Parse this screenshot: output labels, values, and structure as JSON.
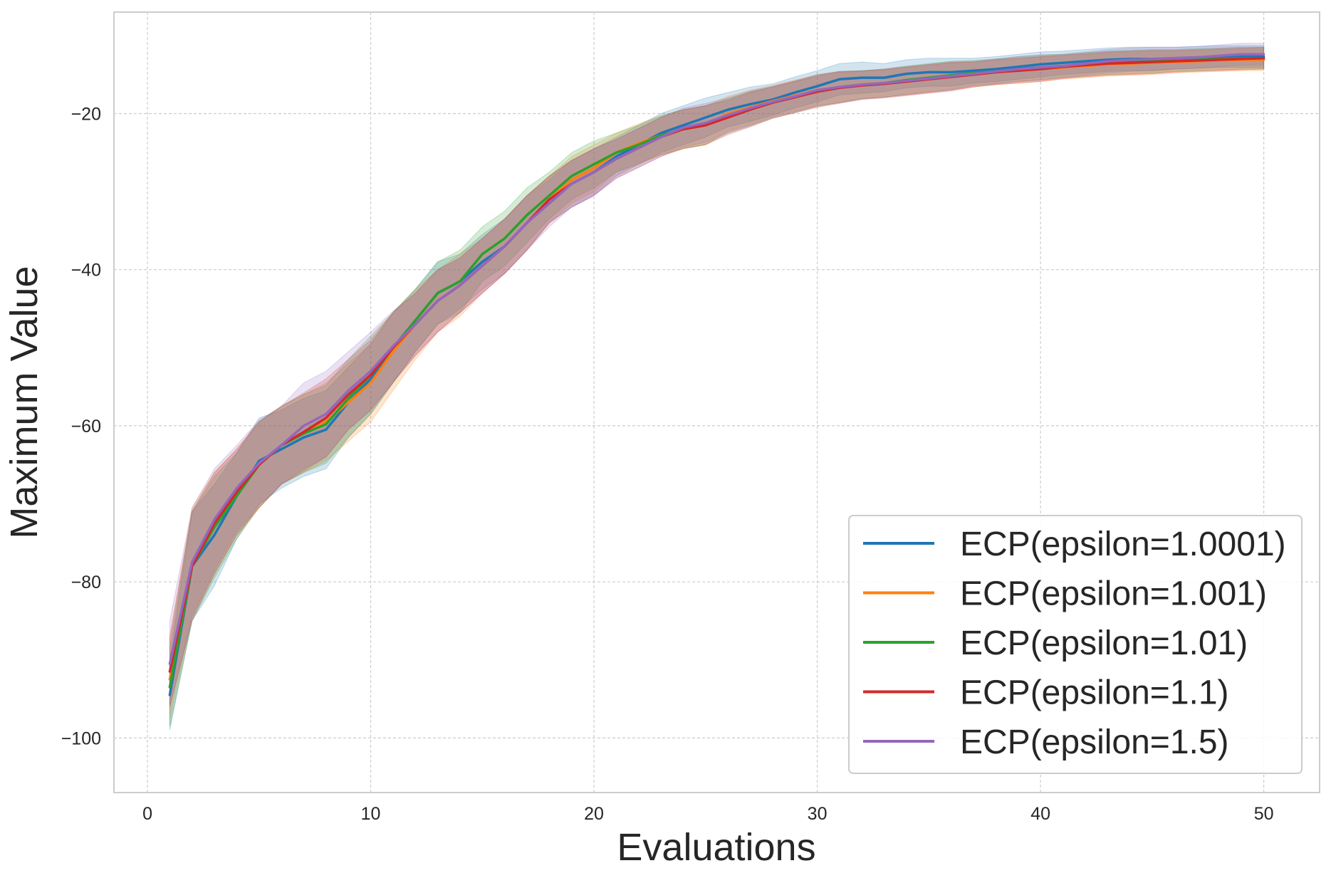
{
  "chart_data": {
    "type": "line",
    "title": "",
    "xlabel": "Evaluations",
    "ylabel": "Maximum Value",
    "xlim": [
      -1.5,
      52.5
    ],
    "ylim": [
      -107,
      -7
    ],
    "xticks": [
      0,
      10,
      20,
      30,
      40,
      50
    ],
    "yticks": [
      -20,
      -40,
      -60,
      -80,
      -100
    ],
    "xtick_labels": [
      "0",
      "10",
      "20",
      "30",
      "40",
      "50"
    ],
    "ytick_labels": [
      "−20",
      "−40",
      "−60",
      "−80",
      "−100"
    ],
    "grid": true,
    "legend_position": "lower-right",
    "x": [
      1,
      2,
      3,
      4,
      5,
      6,
      7,
      8,
      9,
      10,
      11,
      12,
      13,
      14,
      15,
      16,
      17,
      18,
      19,
      20,
      21,
      22,
      23,
      24,
      25,
      26,
      27,
      28,
      29,
      30,
      31,
      32,
      33,
      34,
      35,
      36,
      37,
      38,
      39,
      40,
      41,
      42,
      43,
      44,
      45,
      46,
      47,
      48,
      49,
      50
    ],
    "series": [
      {
        "name": "ECP(epsilon=1.0001)",
        "color": "#1f77b4",
        "values": [
          -94.5,
          -78,
          -74,
          -69,
          -64.5,
          -63,
          -61.5,
          -60.5,
          -57,
          -54,
          -50,
          -46.5,
          -43,
          -41.5,
          -39,
          -37,
          -34,
          -31,
          -29,
          -27.5,
          -25.5,
          -24,
          -22.5,
          -21.5,
          -20.5,
          -19.5,
          -18.8,
          -18.2,
          -17.3,
          -16.5,
          -15.6,
          -15.4,
          -15.4,
          -14.9,
          -14.7,
          -14.7,
          -14.5,
          -14.3,
          -14,
          -13.7,
          -13.5,
          -13.3,
          -13.1,
          -13,
          -13,
          -12.9,
          -12.8,
          -12.7,
          -12.7,
          -12.7
        ],
        "band": [
          4.5,
          7,
          6.5,
          5.5,
          5.5,
          5,
          5,
          5,
          4.5,
          4.5,
          4.5,
          4,
          4,
          3.5,
          3.5,
          3.5,
          3.5,
          3,
          3,
          3,
          2.5,
          2.5,
          2.5,
          2.5,
          2.5,
          2.2,
          2.2,
          2,
          2,
          2,
          2,
          2,
          1.8,
          1.8,
          1.8,
          1.8,
          1.6,
          1.6,
          1.6,
          1.6,
          1.5,
          1.5,
          1.5,
          1.5,
          1.5,
          1.4,
          1.4,
          1.4,
          1.4,
          1.4
        ]
      },
      {
        "name": "ECP(epsilon=1.001)",
        "color": "#ff7f0e",
        "values": [
          -92.5,
          -77.5,
          -72.5,
          -68.5,
          -65,
          -62.5,
          -61,
          -59.5,
          -57,
          -54.5,
          -50.5,
          -47,
          -44,
          -42,
          -39.5,
          -37,
          -34,
          -31,
          -28.5,
          -27,
          -25,
          -23.8,
          -22.8,
          -22,
          -21.5,
          -20,
          -19.2,
          -18.4,
          -17.7,
          -17,
          -16.6,
          -16.3,
          -16.1,
          -15.8,
          -15.5,
          -15.2,
          -15,
          -14.7,
          -14.5,
          -14.3,
          -14.1,
          -13.9,
          -13.7,
          -13.6,
          -13.5,
          -13.4,
          -13.3,
          -13.2,
          -13.1,
          -13.1
        ],
        "band": [
          5,
          7,
          6.5,
          5.5,
          5.5,
          5,
          5,
          5,
          5,
          5,
          5,
          4.5,
          4,
          4,
          3.5,
          3.5,
          3.5,
          3,
          3,
          3,
          2.5,
          2.5,
          2.5,
          2.5,
          2.5,
          2.2,
          2.2,
          2,
          2,
          2,
          2,
          1.8,
          1.8,
          1.8,
          1.8,
          1.8,
          1.6,
          1.6,
          1.6,
          1.6,
          1.5,
          1.5,
          1.5,
          1.5,
          1.5,
          1.4,
          1.4,
          1.4,
          1.4,
          1.4
        ]
      },
      {
        "name": "ECP(epsilon=1.01)",
        "color": "#2ca02c",
        "values": [
          -93.5,
          -78,
          -73,
          -69,
          -65,
          -62.5,
          -61,
          -59.8,
          -56.5,
          -53.5,
          -50,
          -46.5,
          -43,
          -41.5,
          -38,
          -36,
          -33,
          -30.5,
          -28,
          -26.5,
          -25,
          -24,
          -22.8,
          -22,
          -21.5,
          -20.3,
          -19.4,
          -18.6,
          -17.9,
          -17.1,
          -16.6,
          -16.3,
          -16.1,
          -15.7,
          -15.4,
          -15.1,
          -14.8,
          -14.6,
          -14.3,
          -14.1,
          -13.9,
          -13.7,
          -13.5,
          -13.4,
          -13.3,
          -13.2,
          -13.1,
          -13,
          -12.9,
          -12.9
        ],
        "band": [
          5,
          7,
          6.5,
          5.5,
          5.5,
          5,
          5,
          5,
          5,
          5,
          4.5,
          4,
          4,
          4,
          3.5,
          3.5,
          3.5,
          3,
          3,
          3,
          2.5,
          2.5,
          2.5,
          2.5,
          2.5,
          2.2,
          2.2,
          2,
          2,
          2,
          2,
          1.8,
          1.8,
          1.8,
          1.8,
          1.8,
          1.6,
          1.6,
          1.6,
          1.6,
          1.5,
          1.5,
          1.5,
          1.5,
          1.5,
          1.4,
          1.4,
          1.4,
          1.4,
          1.4
        ]
      },
      {
        "name": "ECP(epsilon=1.1)",
        "color": "#d62728",
        "values": [
          -91.5,
          -78,
          -72.5,
          -68.5,
          -65,
          -62.5,
          -60.8,
          -59,
          -56,
          -53.5,
          -50,
          -47,
          -44,
          -42,
          -39.5,
          -37,
          -34,
          -31,
          -29,
          -27.5,
          -25.8,
          -24.4,
          -23,
          -22,
          -21.5,
          -20.5,
          -19.5,
          -18.6,
          -17.9,
          -17.2,
          -16.7,
          -16.4,
          -16.2,
          -15.9,
          -15.6,
          -15.3,
          -15,
          -14.7,
          -14.5,
          -14.3,
          -14,
          -13.8,
          -13.6,
          -13.5,
          -13.4,
          -13.3,
          -13.2,
          -13.1,
          -13,
          -12.9
        ],
        "band": [
          4.5,
          7,
          6.5,
          5.5,
          5.5,
          5,
          5,
          5,
          4.5,
          4.5,
          4.5,
          4,
          4,
          3.5,
          3.5,
          3.5,
          3.5,
          3,
          3,
          3,
          2.5,
          2.5,
          2.5,
          2.5,
          2.5,
          2.2,
          2.2,
          2,
          2,
          2,
          2,
          1.8,
          1.8,
          1.8,
          1.8,
          1.8,
          1.6,
          1.6,
          1.6,
          1.6,
          1.5,
          1.5,
          1.5,
          1.5,
          1.5,
          1.4,
          1.4,
          1.4,
          1.4,
          1.4
        ]
      },
      {
        "name": "ECP(epsilon=1.5)",
        "color": "#9467bd",
        "values": [
          -90.5,
          -77.5,
          -72,
          -68,
          -64.8,
          -62.5,
          -60,
          -58.5,
          -55.5,
          -53,
          -49.8,
          -47,
          -44,
          -42,
          -39.5,
          -37,
          -34,
          -31.5,
          -29,
          -27.5,
          -25.8,
          -24.4,
          -23,
          -21.8,
          -21.2,
          -20.2,
          -19.3,
          -18.5,
          -17.8,
          -17,
          -16.6,
          -16.3,
          -16.1,
          -15.8,
          -15.5,
          -15.2,
          -14.9,
          -14.6,
          -14.3,
          -14.1,
          -13.9,
          -13.6,
          -13.3,
          -13.1,
          -13,
          -12.9,
          -12.8,
          -12.6,
          -12.4,
          -12.4
        ],
        "band": [
          5.5,
          7,
          6.5,
          5.5,
          5.5,
          5,
          5.5,
          5.5,
          5,
          5,
          4.5,
          4,
          4,
          3.5,
          3.5,
          3.5,
          3.5,
          3,
          3,
          3,
          2.5,
          2.5,
          2.5,
          2.5,
          2.5,
          2.2,
          2.2,
          2,
          2,
          2,
          2,
          1.8,
          1.8,
          1.8,
          1.8,
          1.8,
          1.6,
          1.6,
          1.6,
          1.6,
          1.5,
          1.5,
          1.5,
          1.5,
          1.5,
          1.4,
          1.4,
          1.4,
          1.4,
          1.4
        ]
      }
    ]
  }
}
